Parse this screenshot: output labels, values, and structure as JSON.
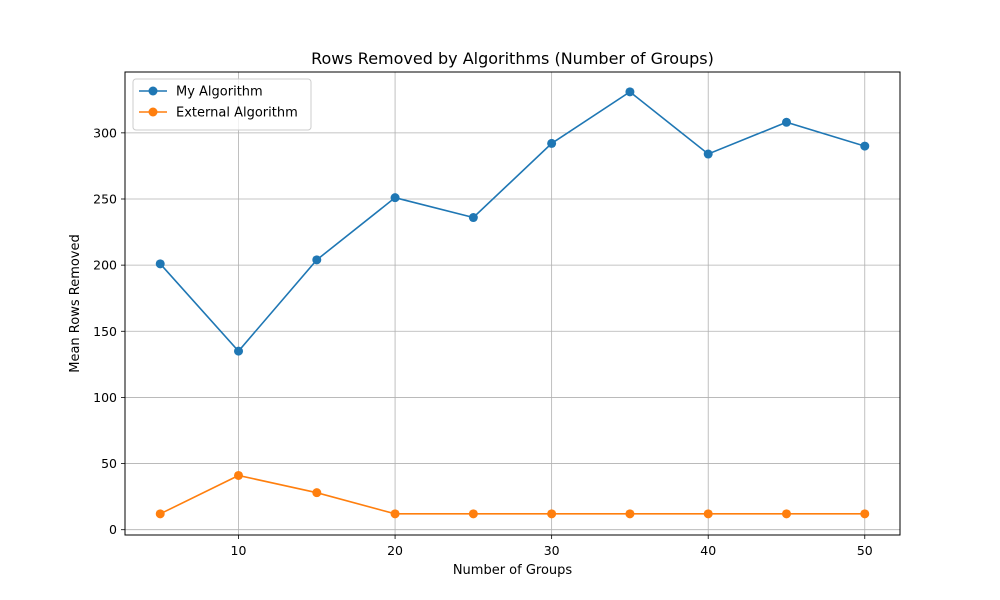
{
  "chart_data": {
    "type": "line",
    "title": "Rows Removed by Algorithms (Number of Groups)",
    "xlabel": "Number of Groups",
    "ylabel": "Mean Rows Removed",
    "x": [
      5,
      10,
      15,
      20,
      25,
      30,
      35,
      40,
      45,
      50
    ],
    "xlim": [
      2.75,
      52.25
    ],
    "ylim": [
      -4,
      346
    ],
    "x_ticks": [
      10,
      20,
      30,
      40,
      50
    ],
    "y_ticks": [
      0,
      50,
      100,
      150,
      200,
      250,
      300
    ],
    "grid": true,
    "legend_position": "top-left",
    "series": [
      {
        "name": "My Algorithm",
        "color": "#1f77b4",
        "marker": "circle",
        "values": [
          201,
          135,
          204,
          251,
          236,
          292,
          331,
          284,
          308,
          290
        ]
      },
      {
        "name": "External Algorithm",
        "color": "#ff7f0e",
        "marker": "circle",
        "values": [
          12,
          41,
          28,
          12,
          12,
          12,
          12,
          12,
          12,
          12
        ]
      }
    ]
  }
}
